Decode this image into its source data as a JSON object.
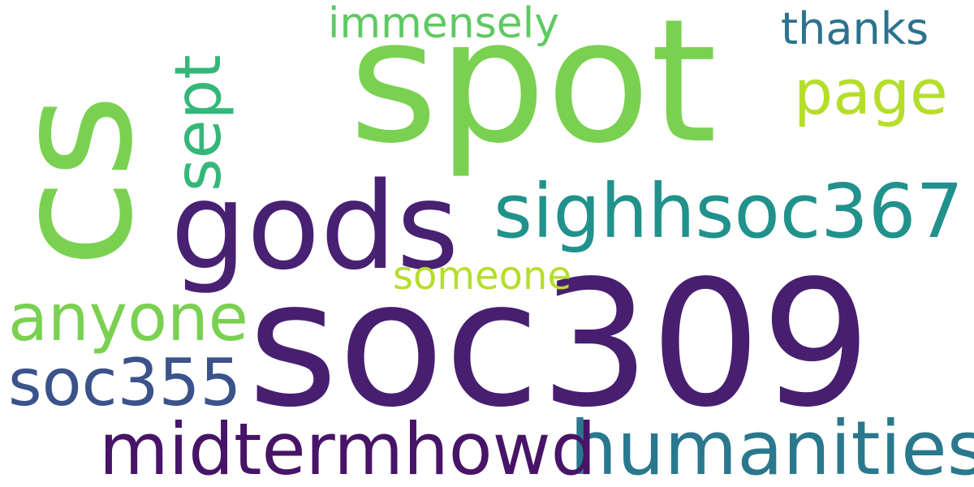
{
  "words": [
    {
      "id": "soc309",
      "text": "soc309",
      "color": "#481f70"
    },
    {
      "id": "spot",
      "text": "spot",
      "color": "#7ad151"
    },
    {
      "id": "cs",
      "text": "cs",
      "color": "#7ad151"
    },
    {
      "id": "gods",
      "text": "gods",
      "color": "#482173"
    },
    {
      "id": "sighhsoc367",
      "text": "sighhsoc367",
      "color": "#21918c"
    },
    {
      "id": "humanities",
      "text": "humanities",
      "color": "#2a788e"
    },
    {
      "id": "midtermhowd",
      "text": "midtermhowd",
      "color": "#481467"
    },
    {
      "id": "anyone",
      "text": "anyone",
      "color": "#7ad151"
    },
    {
      "id": "soc355",
      "text": "soc355",
      "color": "#3b528b"
    },
    {
      "id": "sept",
      "text": "sept",
      "color": "#35b779"
    },
    {
      "id": "page",
      "text": "page",
      "color": "#b5de2b"
    },
    {
      "id": "thanks",
      "text": "thanks",
      "color": "#2c728e"
    },
    {
      "id": "immensely",
      "text": "immensely",
      "color": "#5ec962"
    },
    {
      "id": "someone",
      "text": "someone",
      "color": "#b5de2b"
    }
  ]
}
